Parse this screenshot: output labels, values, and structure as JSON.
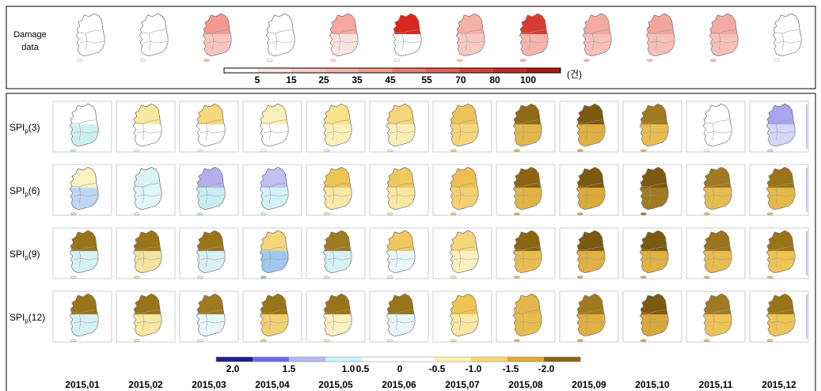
{
  "damage": {
    "label": [
      "Damage",
      "data"
    ],
    "unit": "(건)",
    "legend_labels": [
      "5",
      "15",
      "25",
      "35",
      "45",
      "55",
      "70",
      "80",
      "100"
    ],
    "legend_colors": [
      "#ffffff",
      "#fbe3df",
      "#f8cbc5",
      "#f5b3ab",
      "#f29b91",
      "#ec7e72",
      "#e46154",
      "#d84436",
      "#c92a1c",
      "#b01a10"
    ],
    "maps": [
      {
        "top": "#ffffff",
        "bottom": "#ffffff"
      },
      {
        "top": "#ffffff",
        "bottom": "#ffffff"
      },
      {
        "top": "#f09a90",
        "bottom": "#f7c6c0"
      },
      {
        "top": "#ffffff",
        "bottom": "#ffffff"
      },
      {
        "top": "#f4a8a0",
        "bottom": "#fbe3df"
      },
      {
        "top": "#d8281c",
        "bottom": "#ffffff"
      },
      {
        "top": "#f5b0a8",
        "bottom": "#f8c8c2"
      },
      {
        "top": "#d83a30",
        "bottom": "#f5b5ae"
      },
      {
        "top": "#f3aaa2",
        "bottom": "#f7c0ba"
      },
      {
        "top": "#f2a59c",
        "bottom": "#f7c0ba"
      },
      {
        "top": "#f3aaa2",
        "bottom": "#f7c0ba"
      },
      {
        "top": "#ffffff",
        "bottom": "#ffffff"
      }
    ]
  },
  "spi": {
    "rows": [
      {
        "base": "SPI",
        "sub": "p",
        "suffix": "(3)",
        "maps": [
          {
            "top": "#ffffff",
            "bottom": "#cdeff4"
          },
          {
            "top": "#f8e8a0",
            "bottom": "#ffffff"
          },
          {
            "top": "#f7d87a",
            "bottom": "#ffffff"
          },
          {
            "top": "#fbf0b8",
            "bottom": "#ffffff"
          },
          {
            "top": "#f9e48d",
            "bottom": "#fbf0b8"
          },
          {
            "top": "#f6d67a",
            "bottom": "#fbefb5"
          },
          {
            "top": "#edc45a",
            "bottom": "#f6d67a"
          },
          {
            "top": "#8f6a14",
            "bottom": "#e4b64a"
          },
          {
            "top": "#7a5a10",
            "bottom": "#e0b040"
          },
          {
            "top": "#a07a20",
            "bottom": "#e8bd50"
          },
          {
            "top": "#ffffff",
            "bottom": "#ffffff"
          },
          {
            "top": "#a9a5ee",
            "bottom": "#d8d6f8"
          }
        ]
      },
      {
        "base": "SPI",
        "sub": "p",
        "suffix": "(6)",
        "maps": [
          {
            "top": "#fbf3c0",
            "bottom": "#bcd6f4"
          },
          {
            "top": "#d8f3f6",
            "bottom": "#e0f6f8"
          },
          {
            "top": "#b4b0ee",
            "bottom": "#c8eef4"
          },
          {
            "top": "#c2bff2",
            "bottom": "#d2f2f6"
          },
          {
            "top": "#eec455",
            "bottom": "#f9e9a5"
          },
          {
            "top": "#f0c860",
            "bottom": "#f8e8a0"
          },
          {
            "top": "#eebf50",
            "bottom": "#f4d070"
          },
          {
            "top": "#8b6510",
            "bottom": "#e2b445"
          },
          {
            "top": "#7a5a10",
            "bottom": "#dcaa38"
          },
          {
            "top": "#7a5a10",
            "bottom": "#a07a20"
          },
          {
            "top": "#a07a20",
            "bottom": "#e8bd50"
          },
          {
            "top": "#9a7418",
            "bottom": "#e6b848"
          }
        ]
      },
      {
        "base": "SPI",
        "sub": "p",
        "suffix": "(9)",
        "maps": [
          {
            "top": "#9a7418",
            "bottom": "#d6f0f4"
          },
          {
            "top": "#9a7418",
            "bottom": "#f4e3a0"
          },
          {
            "top": "#9a7418",
            "bottom": "#d6f0f4"
          },
          {
            "top": "#f6d67a",
            "bottom": "#9ec8f0"
          },
          {
            "top": "#a07a20",
            "bottom": "#d6f0f4"
          },
          {
            "top": "#f0c860",
            "bottom": "#e8f7fa"
          },
          {
            "top": "#f6d67a",
            "bottom": "#fbf0c0"
          },
          {
            "top": "#8b6510",
            "bottom": "#e8bd50"
          },
          {
            "top": "#7a5a10",
            "bottom": "#e0b040"
          },
          {
            "top": "#7a5a10",
            "bottom": "#e0b040"
          },
          {
            "top": "#9a7418",
            "bottom": "#e8bd50"
          },
          {
            "top": "#9a7418",
            "bottom": "#eec455"
          }
        ]
      },
      {
        "base": "SPI",
        "sub": "p",
        "suffix": "(12)",
        "maps": [
          {
            "top": "#9a7418",
            "bottom": "#d6f0f4"
          },
          {
            "top": "#9a7418",
            "bottom": "#f8e8a0"
          },
          {
            "top": "#a07a20",
            "bottom": "#e8f7fa"
          },
          {
            "top": "#9a7418",
            "bottom": "#f4d070"
          },
          {
            "top": "#9a7418",
            "bottom": "#fbf0c0"
          },
          {
            "top": "#9a7418",
            "bottom": "#e8f7fa"
          },
          {
            "top": "#eec455",
            "bottom": "#f8e8a0"
          },
          {
            "top": "#e4b64a",
            "bottom": "#e8bd50"
          },
          {
            "top": "#a07a20",
            "bottom": "#e0b040"
          },
          {
            "top": "#7a5a10",
            "bottom": "#d8a838"
          },
          {
            "top": "#a07a20",
            "bottom": "#eec455"
          },
          {
            "top": "#9a7418",
            "bottom": "#eec455"
          }
        ]
      }
    ],
    "legend_labels": [
      "2.0",
      "1.5",
      "1.0",
      "0.5",
      "0",
      "-0.5",
      "-1.0",
      "-1.5",
      "-2.0"
    ],
    "legend_colors": [
      "#1c1c8a",
      "#6a6ae8",
      "#b8b6f2",
      "#c8f2f8",
      "#ffffff",
      "#ffffff",
      "#fbf2b0",
      "#f6d66e",
      "#e0aa30",
      "#8b6510"
    ],
    "months": [
      "2015,01",
      "2015,02",
      "2015,03",
      "2015,04",
      "2015,05",
      "2015,06",
      "2015,07",
      "2015,08",
      "2015,09",
      "2015,10",
      "2015,11",
      "2015,12"
    ]
  }
}
